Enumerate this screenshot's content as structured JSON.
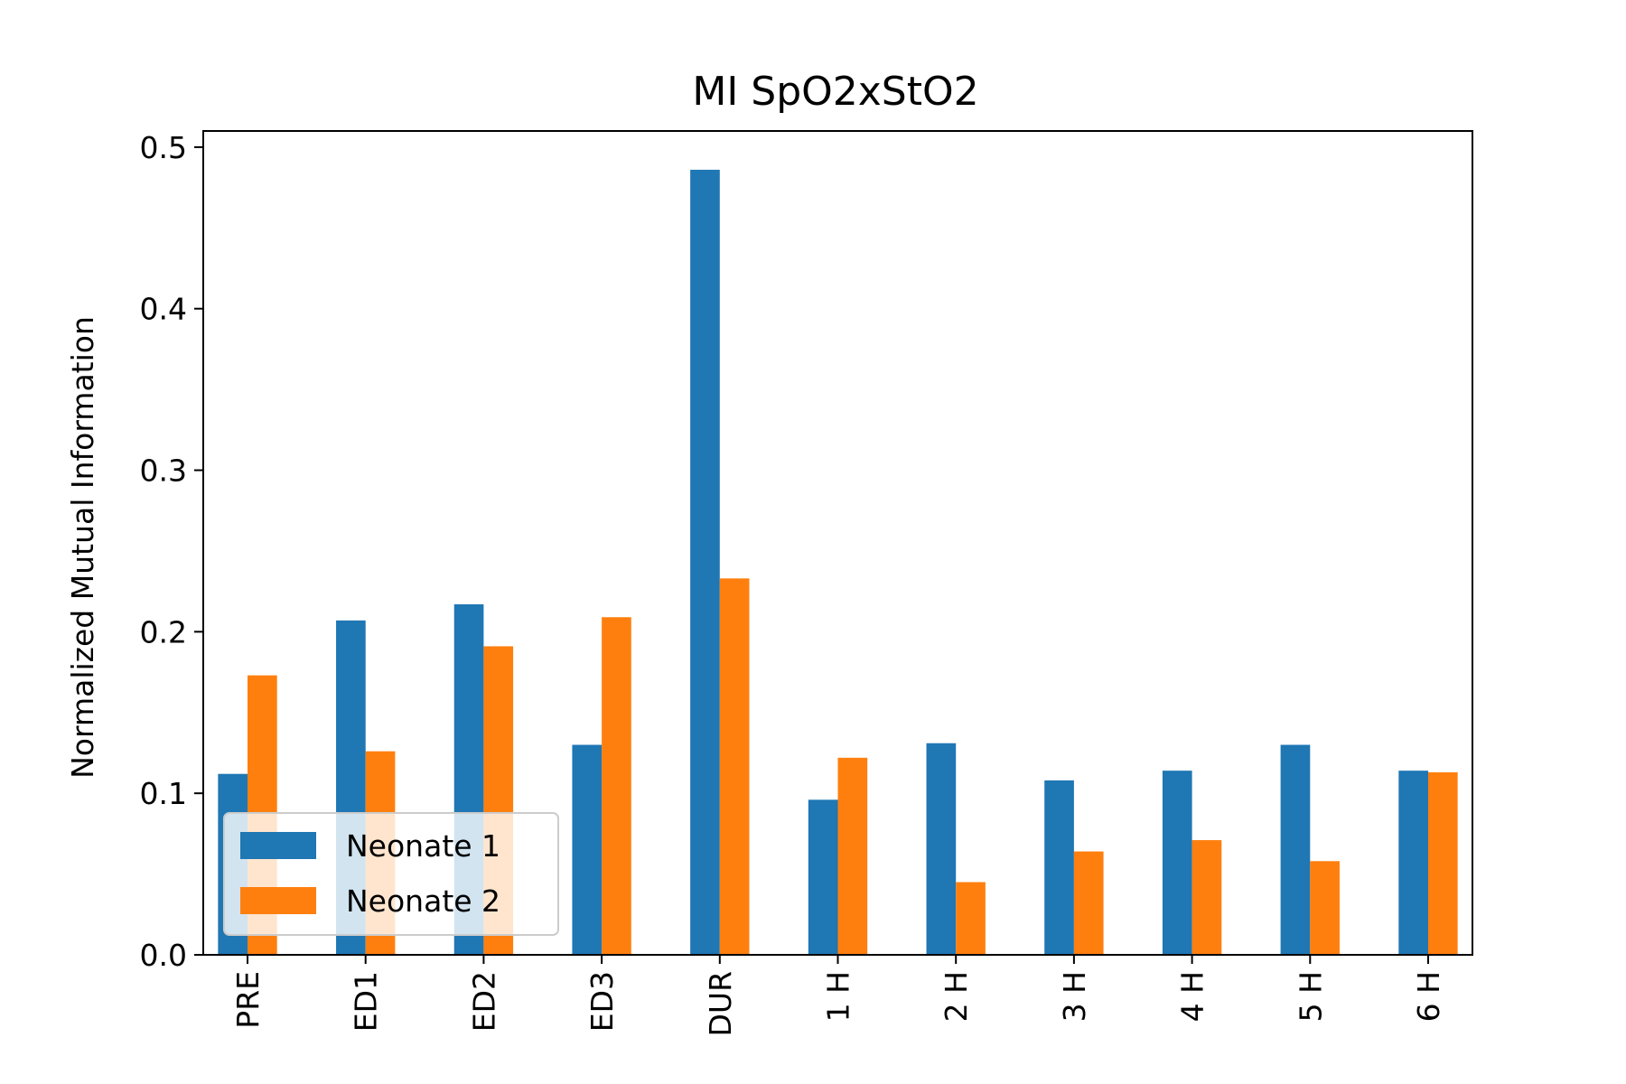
{
  "chart_data": {
    "type": "bar",
    "title": "MI SpO2xStO2",
    "xlabel": "",
    "ylabel": "Normalized Mutual Information",
    "categories": [
      "PRE",
      "ED1",
      "ED2",
      "ED3",
      "DUR",
      "1 H",
      "2 H",
      "3 H",
      "4 H",
      "5 H",
      "6 H"
    ],
    "series": [
      {
        "name": "Neonate 1",
        "color": "#1f77b4",
        "values": [
          0.112,
          0.207,
          0.217,
          0.13,
          0.486,
          0.096,
          0.131,
          0.108,
          0.114,
          0.13,
          0.114
        ]
      },
      {
        "name": "Neonate 2",
        "color": "#ff7f0e",
        "values": [
          0.173,
          0.126,
          0.191,
          0.209,
          0.233,
          0.122,
          0.045,
          0.064,
          0.071,
          0.058,
          0.113
        ]
      }
    ],
    "ylim": [
      0,
      0.51
    ],
    "yticks": [
      "0.0",
      "0.1",
      "0.2",
      "0.3",
      "0.4",
      "0.5"
    ],
    "grid": false,
    "legend_position": "lower-left"
  }
}
